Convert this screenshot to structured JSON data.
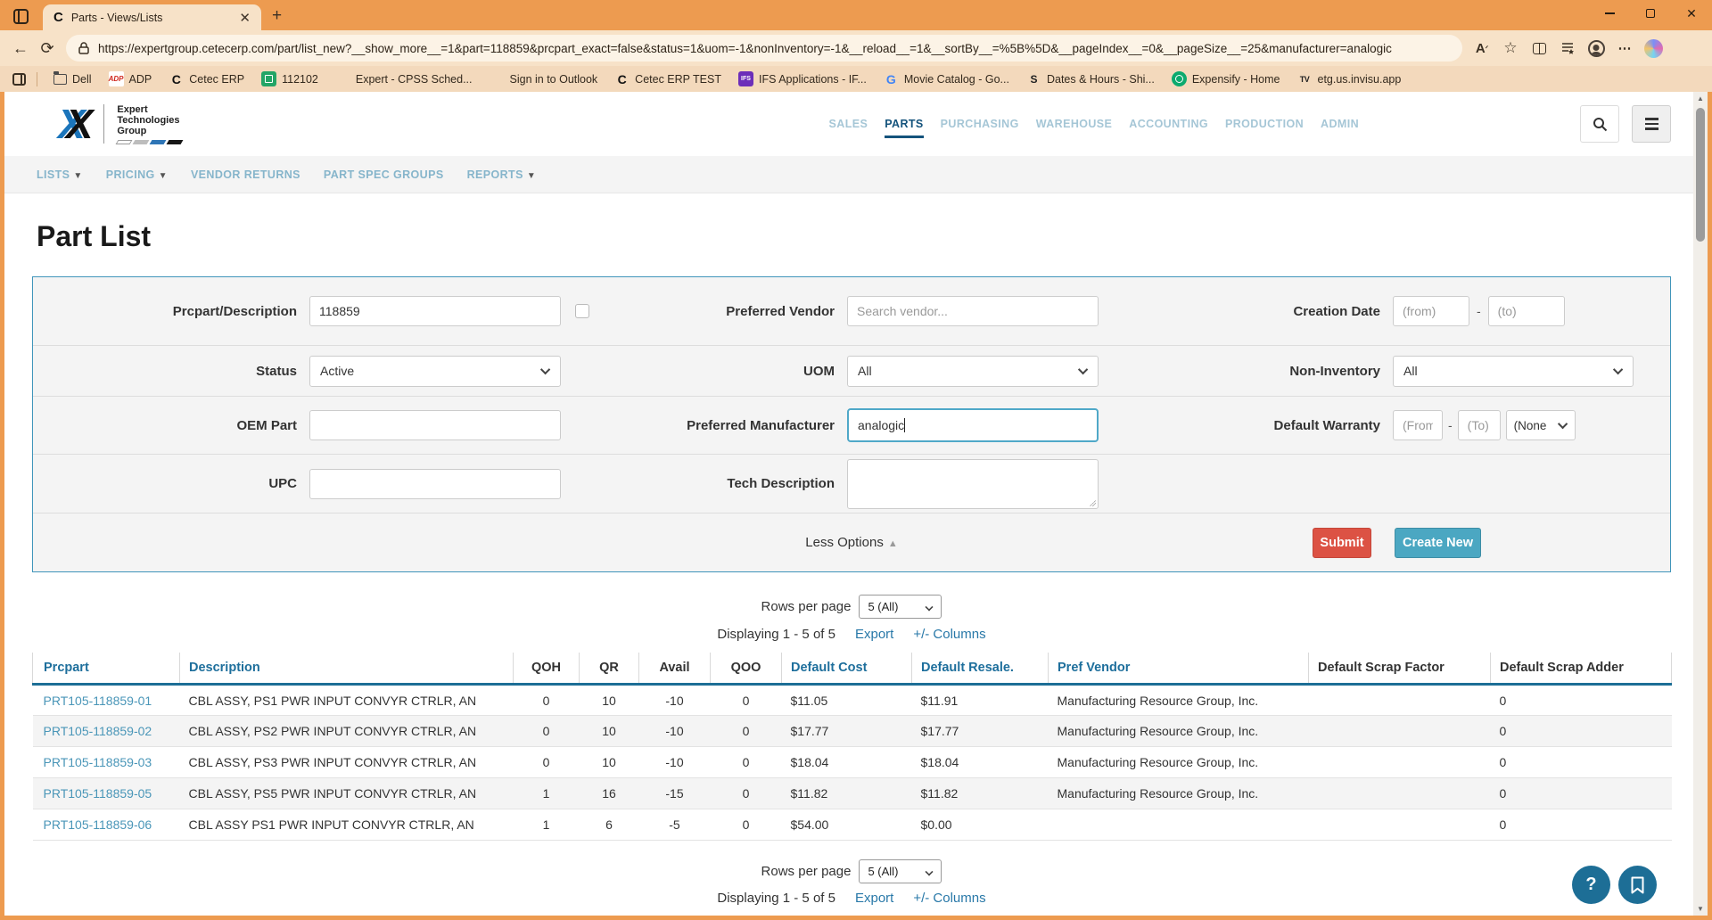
{
  "browser": {
    "tab": {
      "title": "Parts - Views/Lists",
      "favicon_letter": "C"
    },
    "url": "https://expertgroup.cetecerp.com/part/list_new?__show_more__=1&part=118859&prcpart_exact=false&status=1&uom=-1&nonInventory=-1&__reload__=1&__sortBy__=%5B%5D&__pageIndex__=0&__pageSize__=25&manufacturer=analogic",
    "bookmarks": [
      {
        "label": "Dell",
        "fav": "folder"
      },
      {
        "label": "ADP",
        "fav": "adp"
      },
      {
        "label": "Cetec ERP",
        "fav": "cetec"
      },
      {
        "label": "112102",
        "fav": "green-app"
      },
      {
        "label": "Expert - CPSS Sched...",
        "fav": "ms-grid"
      },
      {
        "label": "Sign in to Outlook",
        "fav": "ms-grid-blue"
      },
      {
        "label": "Cetec ERP TEST",
        "fav": "cetec"
      },
      {
        "label": "IFS Applications - IF...",
        "fav": "ifs"
      },
      {
        "label": "Movie Catalog - Go...",
        "fav": "google"
      },
      {
        "label": "Dates & Hours - Shi...",
        "fav": "s-dark"
      },
      {
        "label": "Expensify - Home",
        "fav": "expensify"
      },
      {
        "label": "etg.us.invisu.app",
        "fav": "tv"
      }
    ]
  },
  "header": {
    "logo_lines": [
      "Expert",
      "Technologies",
      "Group"
    ],
    "nav": [
      {
        "label": "SALES",
        "active": false
      },
      {
        "label": "PARTS",
        "active": true
      },
      {
        "label": "PURCHASING",
        "active": false
      },
      {
        "label": "WAREHOUSE",
        "active": false
      },
      {
        "label": "ACCOUNTING",
        "active": false
      },
      {
        "label": "PRODUCTION",
        "active": false
      },
      {
        "label": "ADMIN",
        "active": false
      }
    ]
  },
  "subnav": [
    {
      "label": "LISTS",
      "dropdown": true
    },
    {
      "label": "PRICING",
      "dropdown": true
    },
    {
      "label": "VENDOR RETURNS",
      "dropdown": false
    },
    {
      "label": "PART SPEC GROUPS",
      "dropdown": false
    },
    {
      "label": "REPORTS",
      "dropdown": true
    }
  ],
  "page": {
    "title": "Part List",
    "filters": {
      "prcpart_label": "Prcpart/Description",
      "prcpart_value": "118859",
      "preferred_vendor_label": "Preferred Vendor",
      "preferred_vendor_placeholder": "Search vendor...",
      "creation_date_label": "Creation Date",
      "creation_from_placeholder": "(from)",
      "creation_to_placeholder": "(to)",
      "status_label": "Status",
      "status_value": "Active",
      "uom_label": "UOM",
      "uom_value": "All",
      "non_inventory_label": "Non-Inventory",
      "non_inventory_value": "All",
      "oem_label": "OEM Part",
      "manufacturer_label": "Preferred Manufacturer",
      "manufacturer_value": "analogic",
      "warranty_label": "Default Warranty",
      "warranty_from_placeholder": "(From",
      "warranty_to_placeholder": "(To)",
      "warranty_none_value": "(None",
      "upc_label": "UPC",
      "tech_label": "Tech Description",
      "less_options_label": "Less Options",
      "submit_label": "Submit",
      "create_new_label": "Create New"
    },
    "pager": {
      "rows_per_page_label": "Rows per page",
      "rows_per_page_value": "5 (All)",
      "displaying_text": "Displaying 1 - 5 of 5",
      "export_label": "Export",
      "columns_label": "+/- Columns"
    },
    "table": {
      "columns": [
        {
          "label": "Prcpart",
          "link": true
        },
        {
          "label": "Description",
          "link": true
        },
        {
          "label": "QOH",
          "link": false
        },
        {
          "label": "QR",
          "link": false
        },
        {
          "label": "Avail",
          "link": false
        },
        {
          "label": "QOO",
          "link": false
        },
        {
          "label": "Default Cost",
          "link": true
        },
        {
          "label": "Default Resale.",
          "link": true
        },
        {
          "label": "Pref Vendor",
          "link": true
        },
        {
          "label": "Default Scrap Factor",
          "link": false
        },
        {
          "label": "Default Scrap Adder",
          "link": false
        }
      ],
      "rows": [
        [
          "PRT105-118859-01",
          "CBL ASSY, PS1 PWR INPUT CONVYR CTRLR, AN",
          "0",
          "10",
          "-10",
          "0",
          "$11.05",
          "$11.91",
          "Manufacturing Resource Group, Inc.",
          "",
          "0"
        ],
        [
          "PRT105-118859-02",
          "CBL ASSY, PS2 PWR INPUT CONVYR CTRLR, AN",
          "0",
          "10",
          "-10",
          "0",
          "$17.77",
          "$17.77",
          "Manufacturing Resource Group, Inc.",
          "",
          "0"
        ],
        [
          "PRT105-118859-03",
          "CBL ASSY, PS3 PWR INPUT CONVYR CTRLR, AN",
          "0",
          "10",
          "-10",
          "0",
          "$18.04",
          "$18.04",
          "Manufacturing Resource Group, Inc.",
          "",
          "0"
        ],
        [
          "PRT105-118859-05",
          "CBL ASSY, PS5 PWR INPUT CONVYR CTRLR, AN",
          "1",
          "16",
          "-15",
          "0",
          "$11.82",
          "$11.82",
          "Manufacturing Resource Group, Inc.",
          "",
          "0"
        ],
        [
          "PRT105-118859-06",
          "CBL ASSY PS1 PWR INPUT CONVYR CTRLR, AN",
          "1",
          "6",
          "-5",
          "0",
          "$54.00",
          "$0.00",
          "",
          "",
          "0"
        ]
      ]
    }
  },
  "colors": {
    "chrome_orange": "#ED9B50",
    "accent_teal": "#1D6E96",
    "panel_border_teal": "#4095BA",
    "submit_red": "#DC5244",
    "create_teal": "#4BA7C2",
    "nav_active_blue": "#14537C",
    "link_blue": "#2878A8"
  }
}
